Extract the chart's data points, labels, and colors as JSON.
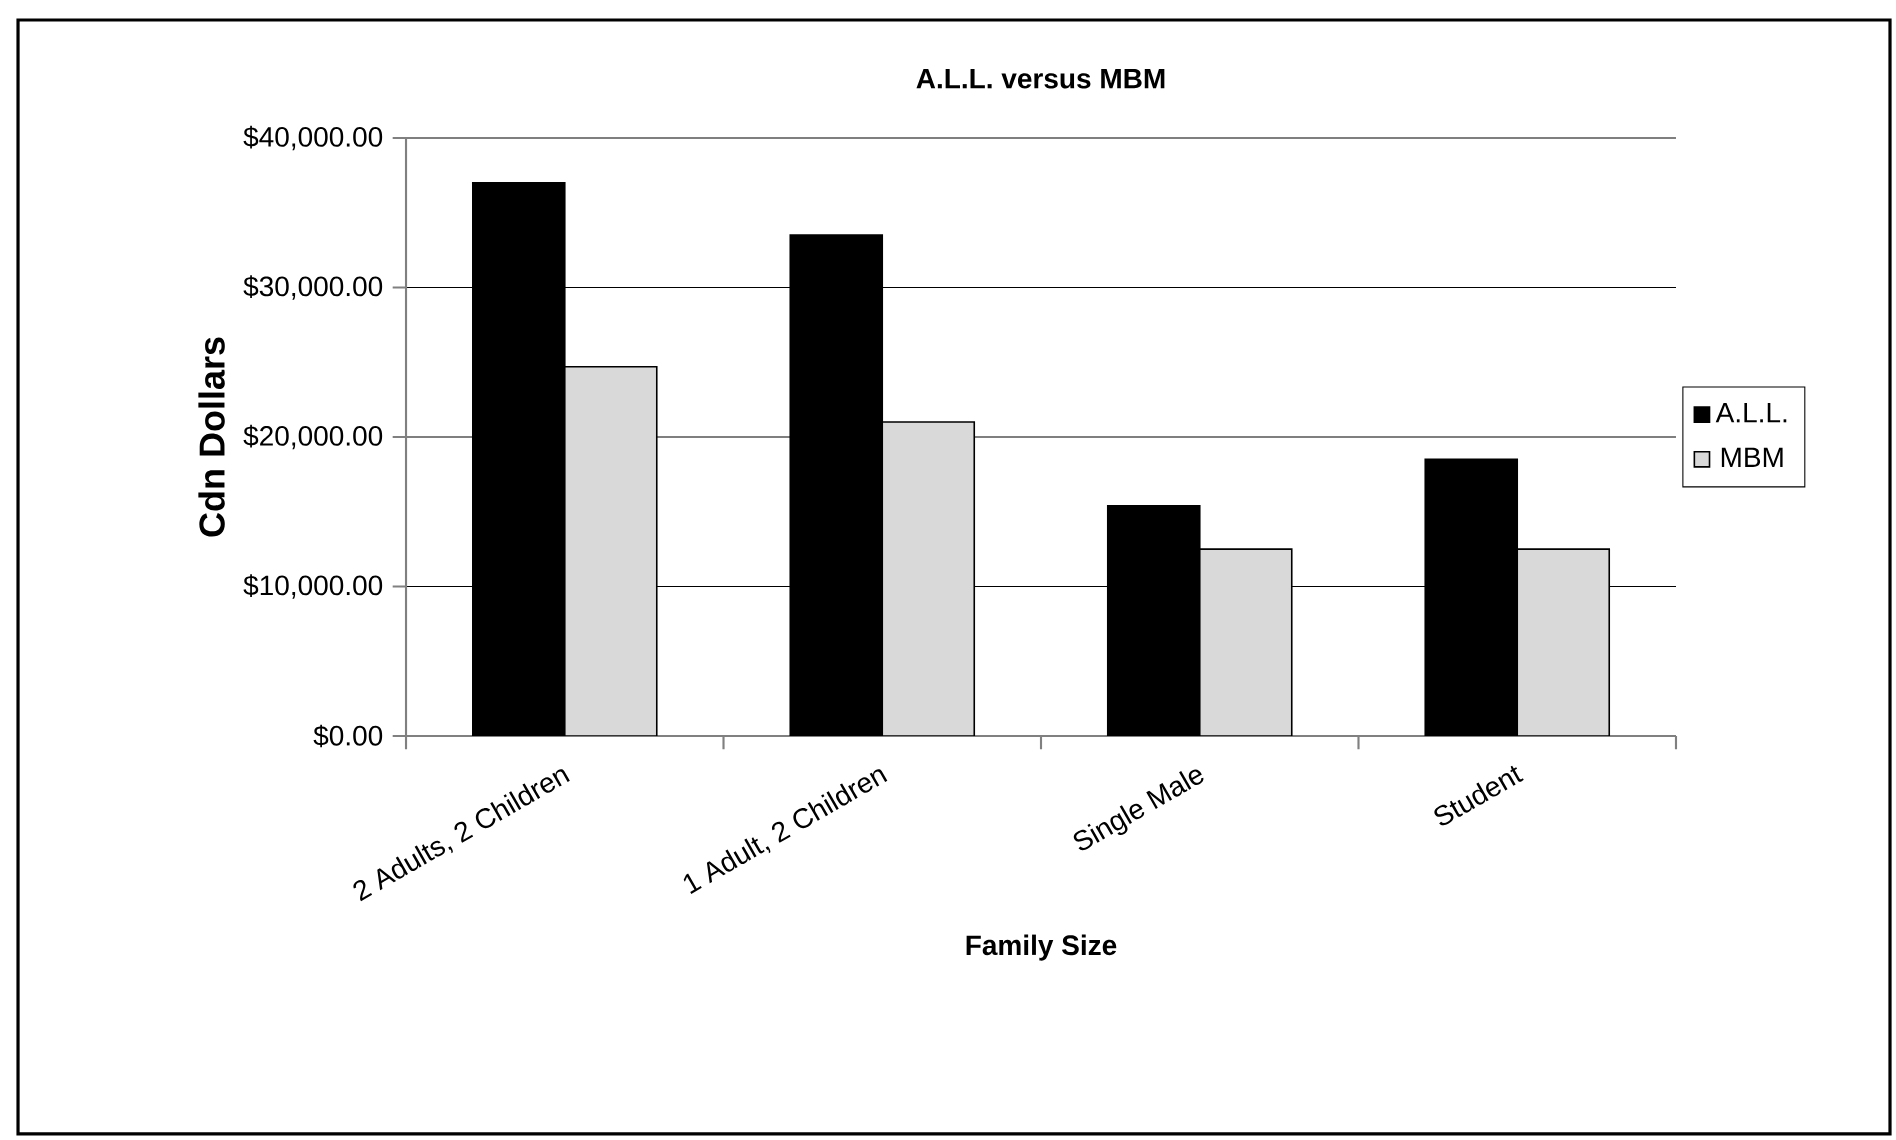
{
  "chart_data": {
    "type": "bar",
    "title": "A.L.L. versus MBM",
    "xlabel": "Family Size",
    "ylabel": "Cdn Dollars",
    "categories": [
      "2 Adults, 2 Children",
      "1 Adult, 2 Children",
      "Single Male",
      "Student"
    ],
    "series": [
      {
        "name": "A.L.L.",
        "color": "#000000",
        "values": [
          37000,
          33500,
          15400,
          18500
        ]
      },
      {
        "name": "MBM",
        "color": "#d9d9d9",
        "values": [
          24700,
          21000,
          12500,
          12500
        ]
      }
    ],
    "ylim": [
      0,
      40000
    ],
    "yticks": [
      {
        "value": 0,
        "label": "$0.00"
      },
      {
        "value": 10000,
        "label": "$10,000.00"
      },
      {
        "value": 20000,
        "label": "$20,000.00"
      },
      {
        "value": 30000,
        "label": "$30,000.00"
      },
      {
        "value": 40000,
        "label": "$40,000.00"
      }
    ],
    "grid": "y",
    "legend": "right"
  }
}
